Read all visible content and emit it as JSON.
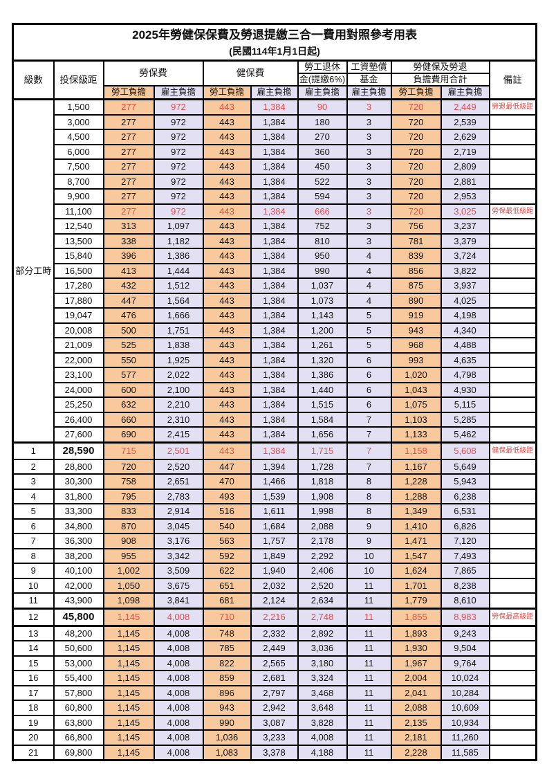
{
  "title": "2025年勞健保保費及勞退提繳三合一費用對照參考用表",
  "subtitle": "(民國114年1月1日起)",
  "colors": {
    "employee_bg": "#F8C99C",
    "employer_bg": "#E2E0F2",
    "red_text": "#E64A4A",
    "grid": "#000000"
  },
  "header": {
    "col_level": "級數",
    "col_bracket": "投保級距",
    "col_labor": "勞保費",
    "col_health": "健保費",
    "col_pension_l1": "勞工退休",
    "col_pension_l2": "金(提繳6%)",
    "col_fund_l1": "工資墊償",
    "col_fund_l2": "基金",
    "col_total_l1": "勞健保及勞退",
    "col_total_l2": "負擔費用合計",
    "col_note": "備註",
    "employee": "勞工負擔",
    "employer": "雇主負擔"
  },
  "part_time_label": "部分工時",
  "rows": [
    {
      "lv": "",
      "br": "1,500",
      "v": [
        "277",
        "972",
        "443",
        "1,384",
        "90",
        "3",
        "720",
        "2,449"
      ],
      "note": "勞退最低級距",
      "hl": true,
      "big": false
    },
    {
      "lv": "",
      "br": "3,000",
      "v": [
        "277",
        "972",
        "443",
        "1,384",
        "180",
        "3",
        "720",
        "2,539"
      ],
      "note": "",
      "hl": false,
      "big": false
    },
    {
      "lv": "",
      "br": "4,500",
      "v": [
        "277",
        "972",
        "443",
        "1,384",
        "270",
        "3",
        "720",
        "2,629"
      ],
      "note": "",
      "hl": false,
      "big": false
    },
    {
      "lv": "",
      "br": "6,000",
      "v": [
        "277",
        "972",
        "443",
        "1,384",
        "360",
        "3",
        "720",
        "2,719"
      ],
      "note": "",
      "hl": false,
      "big": false
    },
    {
      "lv": "",
      "br": "7,500",
      "v": [
        "277",
        "972",
        "443",
        "1,384",
        "450",
        "3",
        "720",
        "2,809"
      ],
      "note": "",
      "hl": false,
      "big": false
    },
    {
      "lv": "",
      "br": "8,700",
      "v": [
        "277",
        "972",
        "443",
        "1,384",
        "522",
        "3",
        "720",
        "2,881"
      ],
      "note": "",
      "hl": false,
      "big": false
    },
    {
      "lv": "",
      "br": "9,900",
      "v": [
        "277",
        "972",
        "443",
        "1,384",
        "594",
        "3",
        "720",
        "2,953"
      ],
      "note": "",
      "hl": false,
      "big": false
    },
    {
      "lv": "",
      "br": "11,100",
      "v": [
        "277",
        "972",
        "443",
        "1,384",
        "666",
        "3",
        "720",
        "3,025"
      ],
      "note": "勞保最低級距",
      "hl": true,
      "big": false
    },
    {
      "lv": "",
      "br": "12,540",
      "v": [
        "313",
        "1,097",
        "443",
        "1,384",
        "752",
        "3",
        "756",
        "3,237"
      ],
      "note": "",
      "hl": false,
      "big": false
    },
    {
      "lv": "",
      "br": "13,500",
      "v": [
        "338",
        "1,182",
        "443",
        "1,384",
        "810",
        "3",
        "781",
        "3,379"
      ],
      "note": "",
      "hl": false,
      "big": false
    },
    {
      "lv": "",
      "br": "15,840",
      "v": [
        "396",
        "1,386",
        "443",
        "1,384",
        "950",
        "4",
        "839",
        "3,724"
      ],
      "note": "",
      "hl": false,
      "big": false
    },
    {
      "lv": "",
      "br": "16,500",
      "v": [
        "413",
        "1,444",
        "443",
        "1,384",
        "990",
        "4",
        "856",
        "3,822"
      ],
      "note": "",
      "hl": false,
      "big": false
    },
    {
      "lv": "",
      "br": "17,280",
      "v": [
        "432",
        "1,512",
        "443",
        "1,384",
        "1,037",
        "4",
        "875",
        "3,937"
      ],
      "note": "",
      "hl": false,
      "big": false
    },
    {
      "lv": "",
      "br": "17,880",
      "v": [
        "447",
        "1,564",
        "443",
        "1,384",
        "1,073",
        "4",
        "890",
        "4,025"
      ],
      "note": "",
      "hl": false,
      "big": false
    },
    {
      "lv": "",
      "br": "19,047",
      "v": [
        "476",
        "1,666",
        "443",
        "1,384",
        "1,143",
        "5",
        "919",
        "4,198"
      ],
      "note": "",
      "hl": false,
      "big": false
    },
    {
      "lv": "",
      "br": "20,008",
      "v": [
        "500",
        "1,751",
        "443",
        "1,384",
        "1,200",
        "5",
        "943",
        "4,340"
      ],
      "note": "",
      "hl": false,
      "big": false
    },
    {
      "lv": "",
      "br": "21,009",
      "v": [
        "525",
        "1,838",
        "443",
        "1,384",
        "1,261",
        "5",
        "968",
        "4,488"
      ],
      "note": "",
      "hl": false,
      "big": false
    },
    {
      "lv": "",
      "br": "22,000",
      "v": [
        "550",
        "1,925",
        "443",
        "1,384",
        "1,320",
        "6",
        "993",
        "4,635"
      ],
      "note": "",
      "hl": false,
      "big": false
    },
    {
      "lv": "",
      "br": "23,100",
      "v": [
        "577",
        "2,022",
        "443",
        "1,384",
        "1,386",
        "6",
        "1,020",
        "4,798"
      ],
      "note": "",
      "hl": false,
      "big": false
    },
    {
      "lv": "",
      "br": "24,000",
      "v": [
        "600",
        "2,100",
        "443",
        "1,384",
        "1,440",
        "6",
        "1,043",
        "4,930"
      ],
      "note": "",
      "hl": false,
      "big": false
    },
    {
      "lv": "",
      "br": "25,250",
      "v": [
        "632",
        "2,210",
        "443",
        "1,384",
        "1,515",
        "6",
        "1,075",
        "5,115"
      ],
      "note": "",
      "hl": false,
      "big": false
    },
    {
      "lv": "",
      "br": "26,400",
      "v": [
        "660",
        "2,310",
        "443",
        "1,384",
        "1,584",
        "7",
        "1,103",
        "5,285"
      ],
      "note": "",
      "hl": false,
      "big": false
    },
    {
      "lv": "",
      "br": "27,600",
      "v": [
        "690",
        "2,415",
        "443",
        "1,384",
        "1,656",
        "7",
        "1,133",
        "5,462"
      ],
      "note": "",
      "hl": false,
      "big": false
    },
    {
      "lv": "1",
      "br": "28,590",
      "v": [
        "715",
        "2,501",
        "443",
        "1,384",
        "1,715",
        "7",
        "1,158",
        "5,608"
      ],
      "note": "健保最低級距",
      "hl": true,
      "big": true
    },
    {
      "lv": "2",
      "br": "28,800",
      "v": [
        "720",
        "2,520",
        "447",
        "1,394",
        "1,728",
        "7",
        "1,167",
        "5,649"
      ],
      "note": "",
      "hl": false,
      "big": false
    },
    {
      "lv": "3",
      "br": "30,300",
      "v": [
        "758",
        "2,651",
        "470",
        "1,466",
        "1,818",
        "8",
        "1,228",
        "5,943"
      ],
      "note": "",
      "hl": false,
      "big": false
    },
    {
      "lv": "4",
      "br": "31,800",
      "v": [
        "795",
        "2,783",
        "493",
        "1,539",
        "1,908",
        "8",
        "1,288",
        "6,238"
      ],
      "note": "",
      "hl": false,
      "big": false
    },
    {
      "lv": "5",
      "br": "33,300",
      "v": [
        "833",
        "2,914",
        "516",
        "1,611",
        "1,998",
        "8",
        "1,349",
        "6,531"
      ],
      "note": "",
      "hl": false,
      "big": false
    },
    {
      "lv": "6",
      "br": "34,800",
      "v": [
        "870",
        "3,045",
        "540",
        "1,684",
        "2,088",
        "9",
        "1,410",
        "6,826"
      ],
      "note": "",
      "hl": false,
      "big": false
    },
    {
      "lv": "7",
      "br": "36,300",
      "v": [
        "908",
        "3,176",
        "563",
        "1,757",
        "2,178",
        "9",
        "1,471",
        "7,120"
      ],
      "note": "",
      "hl": false,
      "big": false
    },
    {
      "lv": "8",
      "br": "38,200",
      "v": [
        "955",
        "3,342",
        "592",
        "1,849",
        "2,292",
        "10",
        "1,547",
        "7,493"
      ],
      "note": "",
      "hl": false,
      "big": false
    },
    {
      "lv": "9",
      "br": "40,100",
      "v": [
        "1,002",
        "3,509",
        "622",
        "1,940",
        "2,406",
        "10",
        "1,624",
        "7,865"
      ],
      "note": "",
      "hl": false,
      "big": false
    },
    {
      "lv": "10",
      "br": "42,000",
      "v": [
        "1,050",
        "3,675",
        "651",
        "2,032",
        "2,520",
        "11",
        "1,701",
        "8,238"
      ],
      "note": "",
      "hl": false,
      "big": false
    },
    {
      "lv": "11",
      "br": "43,900",
      "v": [
        "1,098",
        "3,841",
        "681",
        "2,124",
        "2,634",
        "11",
        "1,779",
        "8,610"
      ],
      "note": "",
      "hl": false,
      "big": false
    },
    {
      "lv": "12",
      "br": "45,800",
      "v": [
        "1,145",
        "4,008",
        "710",
        "2,216",
        "2,748",
        "11",
        "1,855",
        "8,983"
      ],
      "note": "勞保最高級距",
      "hl": true,
      "big": true
    },
    {
      "lv": "13",
      "br": "48,200",
      "v": [
        "1,145",
        "4,008",
        "748",
        "2,332",
        "2,892",
        "11",
        "1,893",
        "9,243"
      ],
      "note": "",
      "hl": false,
      "big": false
    },
    {
      "lv": "14",
      "br": "50,600",
      "v": [
        "1,145",
        "4,008",
        "785",
        "2,449",
        "3,036",
        "11",
        "1,930",
        "9,504"
      ],
      "note": "",
      "hl": false,
      "big": false
    },
    {
      "lv": "15",
      "br": "53,000",
      "v": [
        "1,145",
        "4,008",
        "822",
        "2,565",
        "3,180",
        "11",
        "1,967",
        "9,764"
      ],
      "note": "",
      "hl": false,
      "big": false
    },
    {
      "lv": "16",
      "br": "55,400",
      "v": [
        "1,145",
        "4,008",
        "859",
        "2,681",
        "3,324",
        "11",
        "2,004",
        "10,024"
      ],
      "note": "",
      "hl": false,
      "big": false
    },
    {
      "lv": "17",
      "br": "57,800",
      "v": [
        "1,145",
        "4,008",
        "896",
        "2,797",
        "3,468",
        "11",
        "2,041",
        "10,284"
      ],
      "note": "",
      "hl": false,
      "big": false
    },
    {
      "lv": "18",
      "br": "60,800",
      "v": [
        "1,145",
        "4,008",
        "943",
        "2,942",
        "3,648",
        "11",
        "2,088",
        "10,609"
      ],
      "note": "",
      "hl": false,
      "big": false
    },
    {
      "lv": "19",
      "br": "63,800",
      "v": [
        "1,145",
        "4,008",
        "990",
        "3,087",
        "3,828",
        "11",
        "2,135",
        "10,934"
      ],
      "note": "",
      "hl": false,
      "big": false
    },
    {
      "lv": "20",
      "br": "66,800",
      "v": [
        "1,145",
        "4,008",
        "1,036",
        "3,233",
        "4,008",
        "11",
        "2,181",
        "11,260"
      ],
      "note": "",
      "hl": false,
      "big": false
    },
    {
      "lv": "21",
      "br": "69,800",
      "v": [
        "1,145",
        "4,008",
        "1,083",
        "3,378",
        "4,188",
        "11",
        "2,228",
        "11,585"
      ],
      "note": "",
      "hl": false,
      "big": false
    }
  ]
}
